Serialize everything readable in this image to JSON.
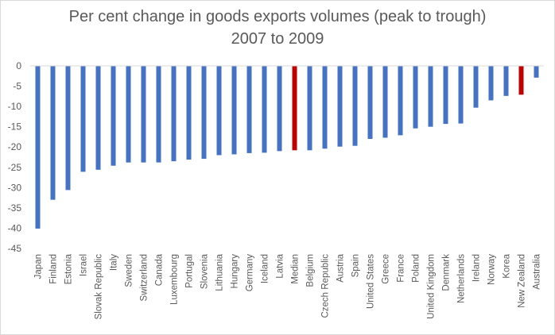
{
  "chart_data": {
    "type": "bar",
    "title": "Per cent change in goods exports volumes (peak to trough)",
    "subtitle": "2007 to 2009",
    "xlabel": "",
    "ylabel": "",
    "ylim": [
      -45,
      0
    ],
    "yticks": [
      0,
      -5,
      -10,
      -15,
      -20,
      -25,
      -30,
      -35,
      -40,
      -45
    ],
    "grid": false,
    "colors": {
      "default": "#4472C4",
      "highlight": "#C00000"
    },
    "highlight": [
      "Median",
      "New Zealand"
    ],
    "categories": [
      "Japan",
      "Finland",
      "Estonia",
      "Israel",
      "Slovak Republic",
      "Italy",
      "Sweden",
      "Switzerland",
      "Canada",
      "Luxembourg",
      "Portugal",
      "Slovenia",
      "Lithuania",
      "Hungary",
      "Germany",
      "Iceland",
      "Latvia",
      "Median",
      "Belgium",
      "Czech Republic",
      "Austria",
      "Spain",
      "United States",
      "Greece",
      "France",
      "Poland",
      "United Kingdom",
      "Denmark",
      "Netherlands",
      "Ireland",
      "Norway",
      "Korea",
      "New Zealand",
      "Australia"
    ],
    "values": [
      -40.1,
      -33.0,
      -30.6,
      -26.1,
      -25.6,
      -24.6,
      -23.8,
      -23.8,
      -23.8,
      -23.5,
      -23.1,
      -22.9,
      -22.0,
      -21.8,
      -21.5,
      -21.4,
      -21.0,
      -20.8,
      -20.8,
      -20.4,
      -19.9,
      -19.7,
      -18.0,
      -17.7,
      -17.1,
      -15.4,
      -15.0,
      -14.3,
      -14.2,
      -10.3,
      -8.5,
      -7.4,
      -7.1,
      -2.9
    ]
  }
}
